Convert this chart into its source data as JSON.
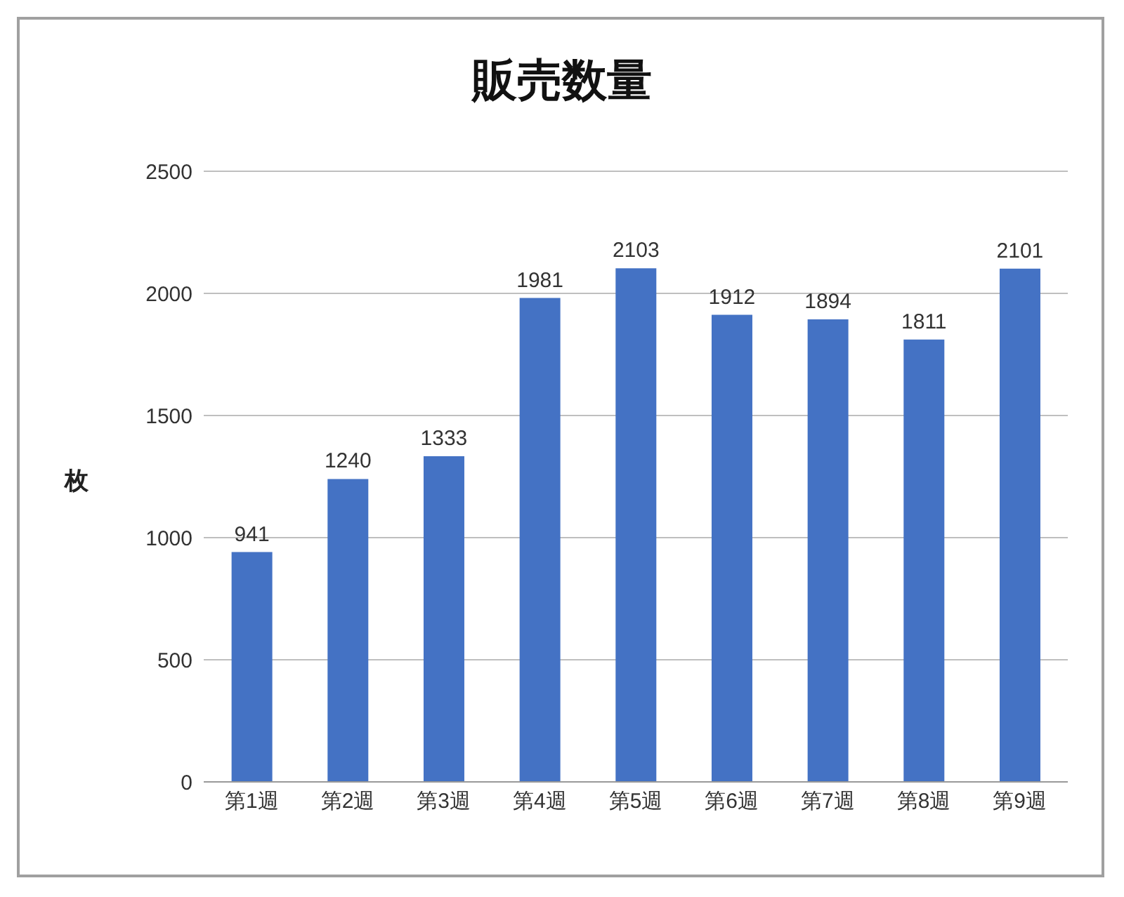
{
  "chart_data": {
    "type": "bar",
    "title": "販売数量",
    "ylabel": "枚",
    "categories": [
      "第1週",
      "第2週",
      "第3週",
      "第4週",
      "第5週",
      "第6週",
      "第7週",
      "第8週",
      "第9週"
    ],
    "values": [
      941,
      1240,
      1333,
      1981,
      2103,
      1912,
      1894,
      1811,
      2101
    ],
    "color": "#4472c4",
    "ylim": [
      0,
      2500
    ],
    "yticks": [
      0,
      500,
      1000,
      1500,
      2000,
      2500
    ],
    "grid": "y",
    "data_labels": true
  }
}
